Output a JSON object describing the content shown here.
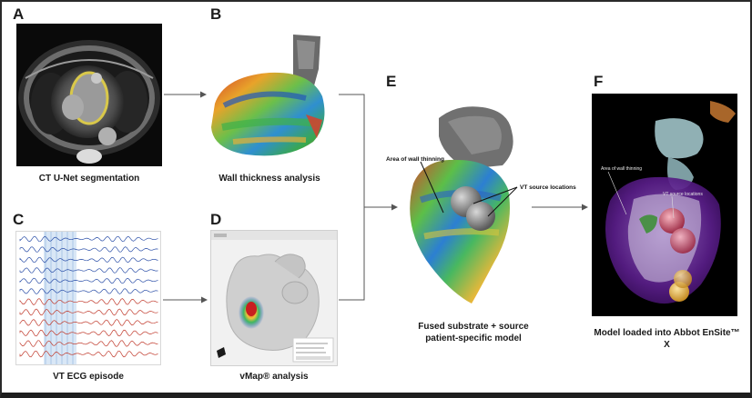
{
  "panels": {
    "a": {
      "letter": "A",
      "caption": "CT U-Net segmentation"
    },
    "b": {
      "letter": "B",
      "caption": "Wall thickness analysis"
    },
    "c": {
      "letter": "C",
      "caption": "VT ECG episode"
    },
    "d": {
      "letter": "D",
      "caption": "vMap® analysis"
    },
    "e": {
      "letter": "E",
      "caption_line1": "Fused substrate + source",
      "caption_line2": "patient-specific model",
      "label_wall": "Area of wall thinning",
      "label_vt": "VT source locations"
    },
    "f": {
      "letter": "F",
      "caption": "Model loaded into Abbot EnSite™ X",
      "label_wall": "Area of wall thinning",
      "label_vt": "VT source locations"
    }
  },
  "colors": {
    "arrow": "#555555",
    "ecg_blue": "#2b4fa8",
    "ecg_red": "#c0392b",
    "ecg_highlight": "#b9d3ee",
    "heart_purple": "#6a2a9c",
    "heart_grey": "#7d7d7d",
    "vt_sphere_red": "#c2405a",
    "vt_sphere_yellow": "#e4b23a"
  },
  "icons": [
    "arrow-right",
    "arrow-merge"
  ]
}
